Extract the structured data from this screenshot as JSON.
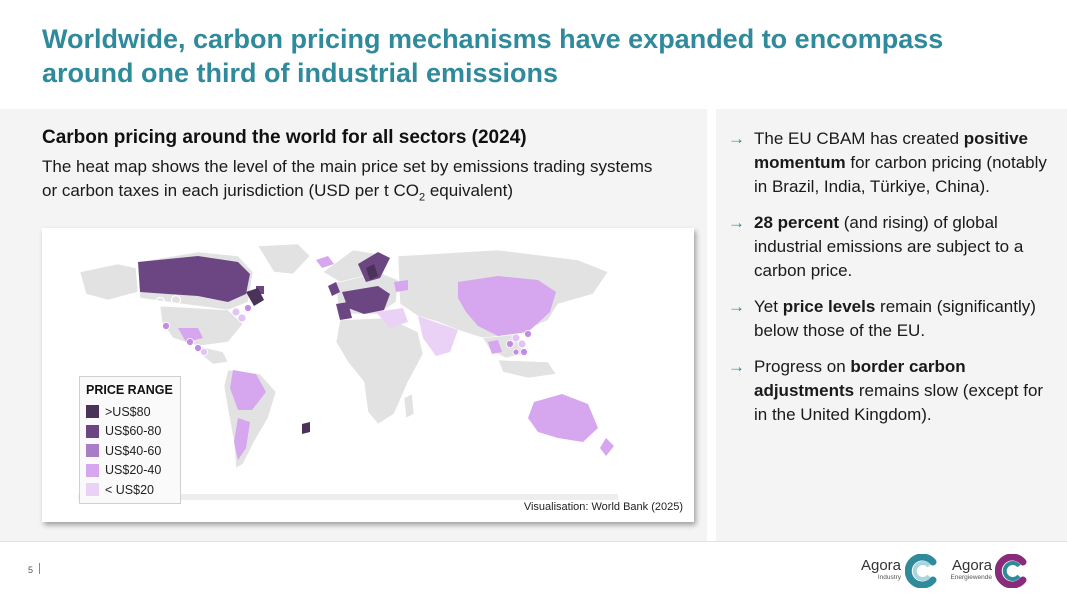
{
  "slide": {
    "title": "Worldwide, carbon pricing mechanisms have expanded to encompass around one third of industrial emissions",
    "page_number": "5"
  },
  "map_panel": {
    "heading": "Carbon pricing around the world for all sectors (2024)",
    "description_main": "The heat map shows the level of the main price set by emissions trading systems or carbon taxes in each jurisdiction (USD per t CO",
    "description_sub": "2",
    "description_end": " equivalent)",
    "credit": "Visualisation: World Bank (2025)",
    "legend": {
      "title": "PRICE RANGE",
      "items": [
        {
          "label": ">US$80",
          "color": "#4a3259"
        },
        {
          "label": "US$60-80",
          "color": "#6b4683"
        },
        {
          "label": "US$40-60",
          "color": "#a97cc7"
        },
        {
          "label": "US$20-40",
          "color": "#d6a6ef"
        },
        {
          "label": "< US$20",
          "color": "#ead2f7"
        }
      ]
    }
  },
  "bullets": [
    {
      "parts": [
        {
          "t": "The EU CBAM has created "
        },
        {
          "t": "positive momentum",
          "b": true
        },
        {
          "t": " for carbon pricing (notably in Brazil, India, Türkiye, China)."
        }
      ]
    },
    {
      "parts": [
        {
          "t": "28 percent",
          "b": true
        },
        {
          "t": " (and rising) of global industrial emissions are subject to a carbon price."
        }
      ]
    },
    {
      "parts": [
        {
          "t": "Yet "
        },
        {
          "t": "price levels",
          "b": true
        },
        {
          "t": " remain (significantly) below those of the EU."
        }
      ]
    },
    {
      "parts": [
        {
          "t": "Progress on "
        },
        {
          "t": "border carbon adjustments",
          "b": true
        },
        {
          "t": " remains slow (except for in the United Kingdom)."
        }
      ]
    }
  ],
  "bullet_arrow": "→",
  "logos": [
    {
      "name": "Agora",
      "sub": "Industry",
      "color": "#2f8a9c"
    },
    {
      "name": "Agora",
      "sub": "Energiewende",
      "color": "#8a2a7a"
    }
  ],
  "colors": {
    "accent": "#2f8a9c",
    "land": "#e2e2e2"
  }
}
